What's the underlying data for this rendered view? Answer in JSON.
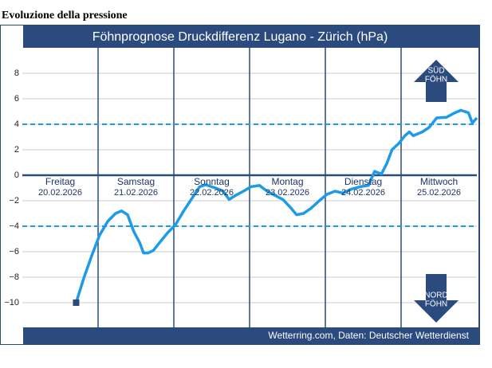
{
  "heading": "Evoluzione della pressione",
  "chart_data": {
    "type": "line",
    "title": "Föhnprognose Druckdifferenz Lugano - Zürich (hPa)",
    "source": "Wetterring.com, Daten: Deutscher Wetterdienst",
    "categories": [
      "Freitag",
      "Samstag",
      "Sonntag",
      "Montag",
      "Dienstag",
      "Mittwoch"
    ],
    "dates": [
      "20.02.2026",
      "21.02.2026",
      "22.02.2026",
      "23.02.2026",
      "24.02.2026",
      "25.02.2026"
    ],
    "annotations": [
      "SÜD",
      "FÖHN",
      "NORD",
      "FÖHN"
    ],
    "reference_lines": [
      4,
      -4
    ],
    "color": "#1e9be8",
    "xlim": [
      0,
      6
    ],
    "ylim": [
      -12,
      10
    ],
    "yticks": [
      8,
      6,
      4,
      2,
      0,
      {
        "value": -2,
        "label": "−2"
      },
      {
        "value": -4,
        "label": "−4"
      },
      {
        "value": -6,
        "label": "−6"
      },
      {
        "value": -8,
        "label": "−8"
      },
      {
        "value": -10,
        "label": "−10"
      }
    ],
    "grid": true,
    "series": [
      {
        "name": "Druckdifferenz",
        "x": [
          0.71,
          0.81,
          0.92,
          1.02,
          1.13,
          1.23,
          1.31,
          1.39,
          1.47,
          1.55,
          1.6,
          1.66,
          1.73,
          1.81,
          1.92,
          2.02,
          2.13,
          2.23,
          2.34,
          2.42,
          2.55,
          2.65,
          2.73,
          2.81,
          2.92,
          3.02,
          3.13,
          3.23,
          3.34,
          3.44,
          3.55,
          3.62,
          3.71,
          3.81,
          3.92,
          4.02,
          4.13,
          4.23,
          4.34,
          4.46,
          4.57,
          4.65,
          4.74,
          4.81,
          4.88,
          4.97,
          5.05,
          5.11,
          5.16,
          5.28,
          5.37,
          5.47,
          5.6,
          5.71,
          5.79,
          5.89,
          5.94,
          6.0
        ],
        "values": [
          -10,
          -8.1,
          -6.25,
          -4.7,
          -3.6,
          -3,
          -2.8,
          -3.1,
          -4.4,
          -5.3,
          -6.1,
          -6.1,
          -5.9,
          -5.3,
          -4.5,
          -3.9,
          -2.8,
          -1.9,
          -0.9,
          -0.75,
          -1,
          -1.25,
          -1.9,
          -1.6,
          -1.25,
          -0.9,
          -0.8,
          -1.25,
          -1.6,
          -1.9,
          -2.6,
          -3.1,
          -3,
          -2.6,
          -2,
          -1.5,
          -1.25,
          -1.4,
          -1.1,
          -0.9,
          -0.8,
          0.3,
          0.1,
          0.9,
          2,
          2.5,
          3.1,
          3.4,
          3.1,
          3.4,
          3.75,
          4.5,
          4.55,
          4.9,
          5.1,
          4.9,
          4.1,
          4.5
        ]
      }
    ]
  }
}
